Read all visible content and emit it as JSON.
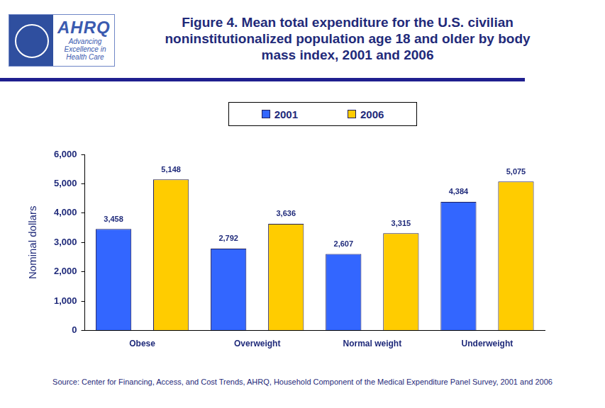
{
  "header": {
    "logo_name": "AHRQ",
    "logo_tagline": "Advancing Excellence in Health Care"
  },
  "chart_data": {
    "type": "bar",
    "title": "Figure 4. Mean total expenditure for the U.S. civilian noninstitutionalized population age 18 and older by body mass index, 2001 and 2006",
    "categories": [
      "Obese",
      "Overweight",
      "Normal weight",
      "Underweight"
    ],
    "series": [
      {
        "name": "2001",
        "color": "#3366ff",
        "values": [
          3458,
          2792,
          2607,
          4384
        ],
        "value_labels": [
          "3,458",
          "2,792",
          "2,607",
          "4,384"
        ]
      },
      {
        "name": "2006",
        "color": "#ffcc00",
        "values": [
          5148,
          3636,
          3315,
          5075
        ],
        "value_labels": [
          "5,148",
          "3,636",
          "3,315",
          "5,075"
        ]
      }
    ],
    "y_label": "Nominal dollars",
    "ylim": [
      0,
      6000
    ],
    "yticks": [
      0,
      {
        "value": 1000,
        "label": "1,000"
      },
      {
        "value": 2000,
        "label": "2,000"
      },
      {
        "value": 3000,
        "label": "3,000"
      },
      {
        "value": 4000,
        "label": "4,000"
      },
      {
        "value": 5000,
        "label": "5,000"
      },
      {
        "value": 6000,
        "label": "6,000"
      }
    ],
    "grid": false,
    "legend": "top",
    "data_labels": true,
    "source": "Source: Center for Financing, Access, and Cost Trends, AHRQ, Household Component of the Medical Expenditure Panel Survey, 2001 and 2006"
  }
}
